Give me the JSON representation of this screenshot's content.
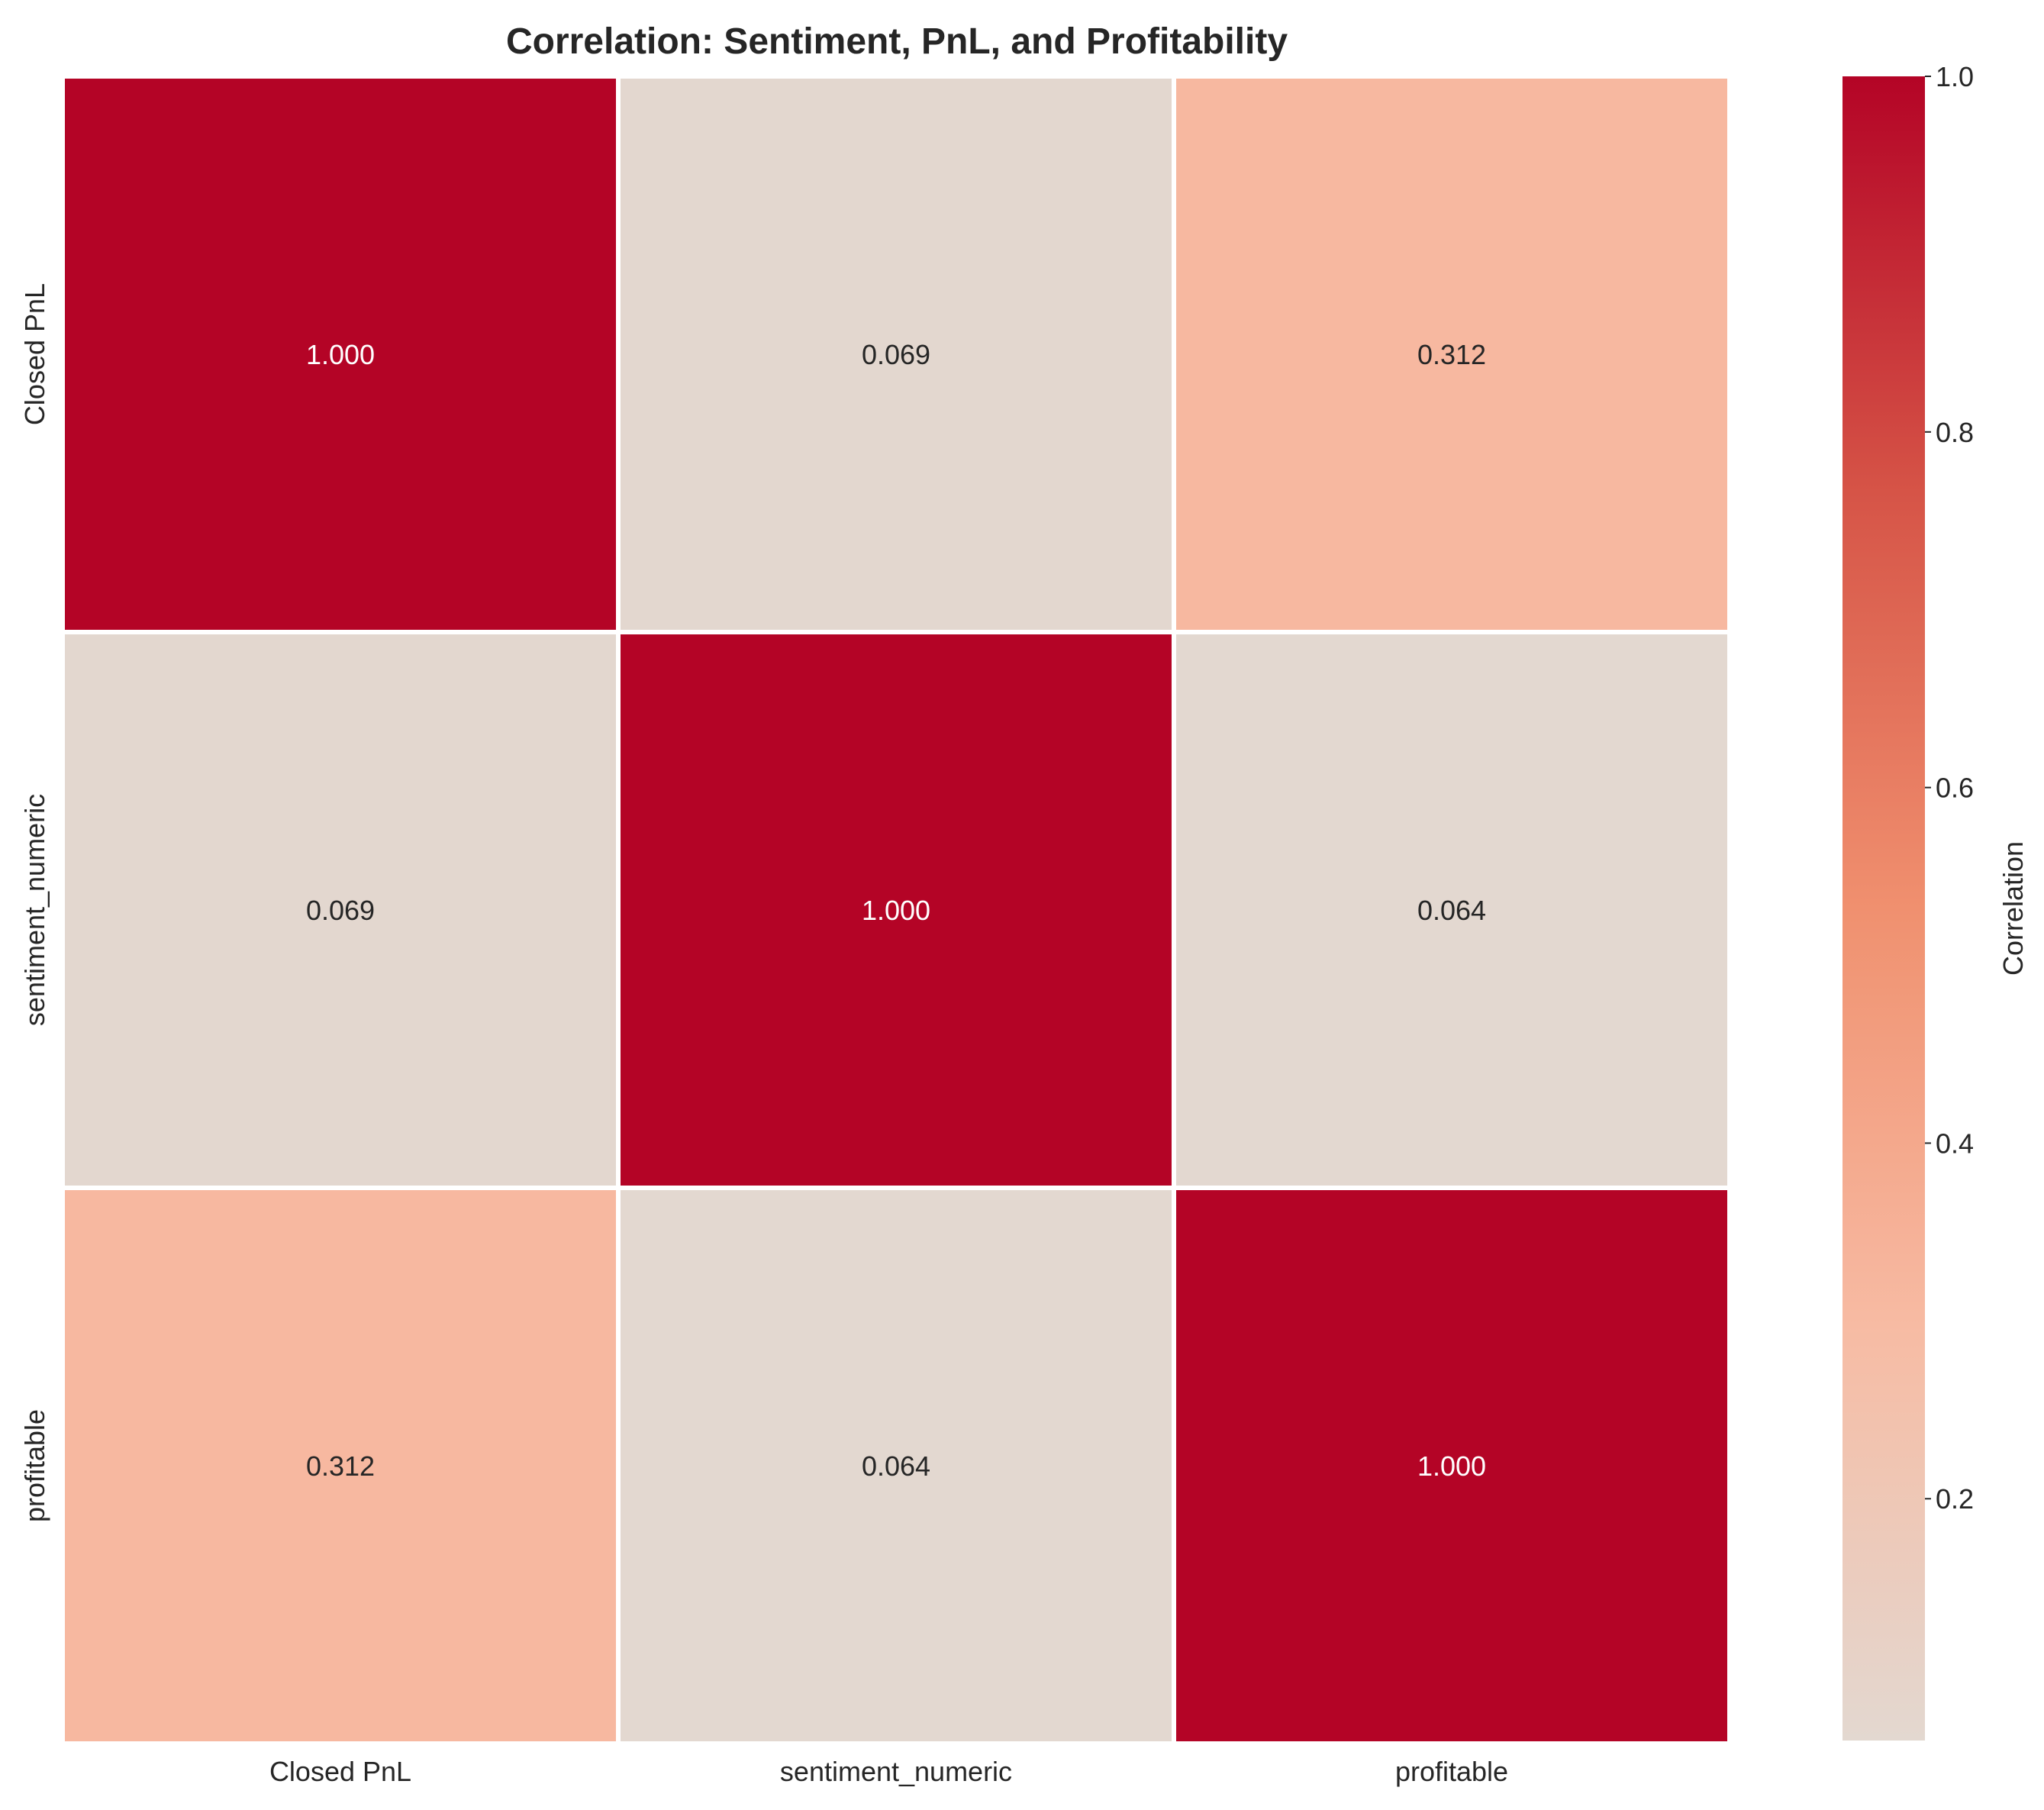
{
  "chart_data": {
    "type": "heatmap",
    "title": "Correlation: Sentiment, PnL, and Profitability",
    "row_labels": [
      "Closed PnL",
      "sentiment_numeric",
      "profitable"
    ],
    "col_labels": [
      "Closed PnL",
      "sentiment_numeric",
      "profitable"
    ],
    "values": [
      [
        1.0,
        0.069,
        0.312
      ],
      [
        0.069,
        1.0,
        0.064
      ],
      [
        0.312,
        0.064,
        1.0
      ]
    ],
    "value_format": "0.000",
    "colorbar": {
      "label": "Correlation",
      "range": [
        0.064,
        1.0
      ],
      "ticks": [
        0.2,
        0.4,
        0.6,
        0.8,
        1.0
      ],
      "tick_labels": [
        "0.2",
        "0.4",
        "0.6",
        "0.8",
        "1.0"
      ]
    },
    "colormap": {
      "name": "coolwarm-upper",
      "stops": [
        {
          "v": 0.0,
          "color": "#e3d8d0"
        },
        {
          "v": 0.0,
          "color": "#e3d8d0"
        },
        {
          "v": 0.25,
          "color": "#f7bba3"
        },
        {
          "v": 0.5,
          "color": "#f0906f"
        },
        {
          "v": 0.75,
          "color": "#d65447"
        },
        {
          "v": 1.0,
          "color": "#b40426"
        }
      ]
    },
    "grid": false,
    "legend": "colorbar-right"
  }
}
